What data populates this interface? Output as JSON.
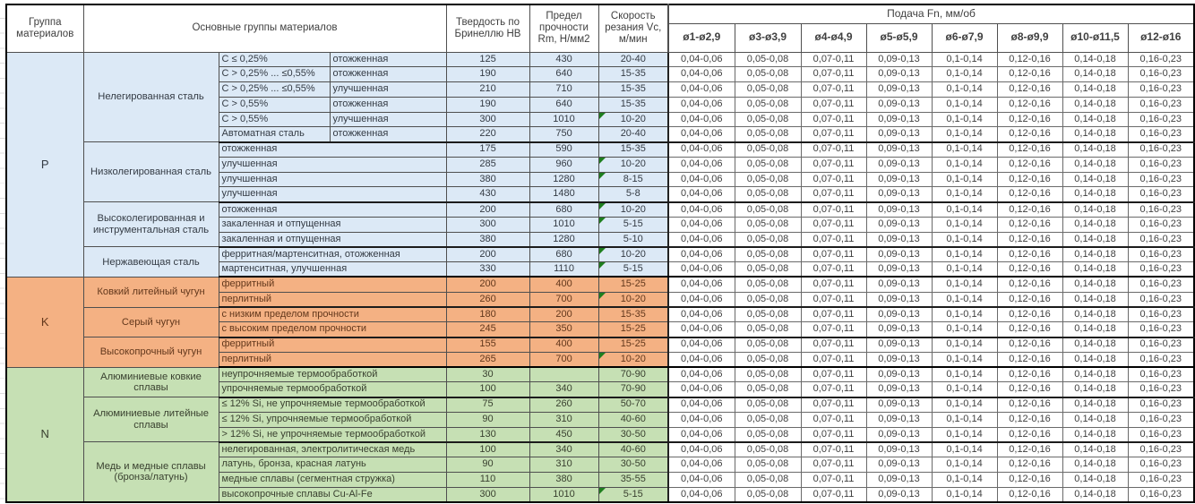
{
  "header": {
    "group_col": "Группа материалов",
    "materials_col": "Основные группы материалов",
    "hardness_col": "Твердость по Бринеллю HB",
    "strength_col": "Предел прочности Rm, Н/мм2",
    "speed_col": "Скорость резания Vc, м/мин",
    "feed_title": "Подача Fn, мм/об",
    "feed_cols": [
      "ø1-ø2,9",
      "ø3-ø3,9",
      "ø4-ø4,9",
      "ø5-ø5,9",
      "ø6-ø7,9",
      "ø8-ø9,9",
      "ø10-ø11,5",
      "ø12-ø16"
    ]
  },
  "feed_values": [
    "0,04-0,06",
    "0,05-0,08",
    "0,07-0,11",
    "0,09-0,13",
    "0,1-0,14",
    "0,12-0,16",
    "0,14-0,18",
    "0,16-0,23"
  ],
  "flag_color": "#1e7e1e",
  "groups": [
    {
      "letter": "P",
      "fill": "#dce9f6",
      "text": "#343b44",
      "subgroups": [
        {
          "name": "Нелегированная сталь",
          "rows": [
            {
              "details": [
                "C ≤ 0,25%",
                "отожженная"
              ],
              "hb": "125",
              "rm": "430",
              "vc": "20-40",
              "flag": false
            },
            {
              "details": [
                "C > 0,25% ... ≤0,55%",
                "отожженная"
              ],
              "hb": "190",
              "rm": "640",
              "vc": "15-35",
              "flag": false
            },
            {
              "details": [
                "C > 0,25% ... ≤0,55%",
                "улучшенная"
              ],
              "hb": "210",
              "rm": "710",
              "vc": "15-35",
              "flag": false
            },
            {
              "details": [
                "C > 0,55%",
                "отожженная"
              ],
              "hb": "190",
              "rm": "640",
              "vc": "15-35",
              "flag": false
            },
            {
              "details": [
                "C > 0,55%",
                "улучшенная"
              ],
              "hb": "300",
              "rm": "1010",
              "vc": "10-20",
              "flag": true
            },
            {
              "details": [
                "Автоматная сталь",
                "отожженная"
              ],
              "hb": "220",
              "rm": "750",
              "vc": "20-40",
              "flag": false
            }
          ]
        },
        {
          "name": "Низколегированная сталь",
          "rows": [
            {
              "details": [
                "отожженная"
              ],
              "hb": "175",
              "rm": "590",
              "vc": "15-35",
              "flag": false
            },
            {
              "details": [
                "улучшенная"
              ],
              "hb": "285",
              "rm": "960",
              "vc": "10-20",
              "flag": true
            },
            {
              "details": [
                "улучшенная"
              ],
              "hb": "380",
              "rm": "1280",
              "vc": "8-15",
              "flag": true
            },
            {
              "details": [
                "улучшенная"
              ],
              "hb": "430",
              "rm": "1480",
              "vc": "5-8",
              "flag": false
            }
          ]
        },
        {
          "name": "Высоколегированная и инструментальная сталь",
          "rows": [
            {
              "details": [
                "отожженная"
              ],
              "hb": "200",
              "rm": "680",
              "vc": "10-20",
              "flag": true
            },
            {
              "details": [
                "закаленная и отпущенная"
              ],
              "hb": "300",
              "rm": "1010",
              "vc": "5-15",
              "flag": true
            },
            {
              "details": [
                "закаленная и отпущенная"
              ],
              "hb": "380",
              "rm": "1280",
              "vc": "5-10",
              "flag": false
            }
          ]
        },
        {
          "name": "Нержавеющая сталь",
          "rows": [
            {
              "details": [
                "ферритная/мартенситная, отожженная"
              ],
              "hb": "200",
              "rm": "680",
              "vc": "10-20",
              "flag": true
            },
            {
              "details": [
                "мартенситная, улучшенная"
              ],
              "hb": "330",
              "rm": "1110",
              "vc": "5-15",
              "flag": true
            }
          ]
        }
      ]
    },
    {
      "letter": "K",
      "fill": "#f4b183",
      "text": "#63381c",
      "subgroups": [
        {
          "name": "Ковкий литейный чугун",
          "rows": [
            {
              "details": [
                "ферритный"
              ],
              "hb": "200",
              "rm": "400",
              "vc": "15-25",
              "flag": false
            },
            {
              "details": [
                "перлитный"
              ],
              "hb": "260",
              "rm": "700",
              "vc": "10-20",
              "flag": true
            }
          ]
        },
        {
          "name": "Серый чугун",
          "rows": [
            {
              "details": [
                "с низким пределом прочности"
              ],
              "hb": "180",
              "rm": "200",
              "vc": "15-35",
              "flag": false
            },
            {
              "details": [
                "с высоким пределом прочности"
              ],
              "hb": "245",
              "rm": "350",
              "vc": "15-25",
              "flag": false
            }
          ]
        },
        {
          "name": "Высокопрочный чугун",
          "rows": [
            {
              "details": [
                "ферритный"
              ],
              "hb": "155",
              "rm": "400",
              "vc": "15-25",
              "flag": false
            },
            {
              "details": [
                "перлитный"
              ],
              "hb": "265",
              "rm": "700",
              "vc": "10-20",
              "flag": true
            }
          ]
        }
      ]
    },
    {
      "letter": "N",
      "fill": "#c6e0b4",
      "text": "#39402f",
      "subgroups": [
        {
          "name": "Алюминиевые ковкие сплавы",
          "rows": [
            {
              "details": [
                "неупрочняемые термообработкой"
              ],
              "hb": "30",
              "rm": "",
              "vc": "70-90",
              "flag": false
            },
            {
              "details": [
                "упрочняемые термообработкой"
              ],
              "hb": "100",
              "rm": "340",
              "vc": "70-90",
              "flag": false
            }
          ]
        },
        {
          "name": "Алюминиевые литейные сплавы",
          "rows": [
            {
              "details": [
                "≤ 12% Si, не упрочняемые термообработкой"
              ],
              "hb": "75",
              "rm": "260",
              "vc": "50-70",
              "flag": false
            },
            {
              "details": [
                "≤ 12% Si, упрочняемые термообработкой"
              ],
              "hb": "90",
              "rm": "310",
              "vc": "40-60",
              "flag": false
            },
            {
              "details": [
                "> 12% Si, не упрочняемые термообработкой"
              ],
              "hb": "130",
              "rm": "450",
              "vc": "30-50",
              "flag": false
            }
          ]
        },
        {
          "name": "Медь и медные сплавы (бронза/латунь)",
          "rows": [
            {
              "details": [
                "нелегированная, электролитическая медь"
              ],
              "hb": "100",
              "rm": "340",
              "vc": "40-60",
              "flag": false
            },
            {
              "details": [
                "латунь, бронза, красная латунь"
              ],
              "hb": "90",
              "rm": "310",
              "vc": "30-50",
              "flag": false
            },
            {
              "details": [
                "медные сплавы (сегментная стружка)"
              ],
              "hb": "110",
              "rm": "380",
              "vc": "35-55",
              "flag": false
            },
            {
              "details": [
                "высокопрочные сплавы Cu-Al-Fe"
              ],
              "hb": "300",
              "rm": "1010",
              "vc": "5-15",
              "flag": true
            }
          ]
        }
      ]
    }
  ]
}
